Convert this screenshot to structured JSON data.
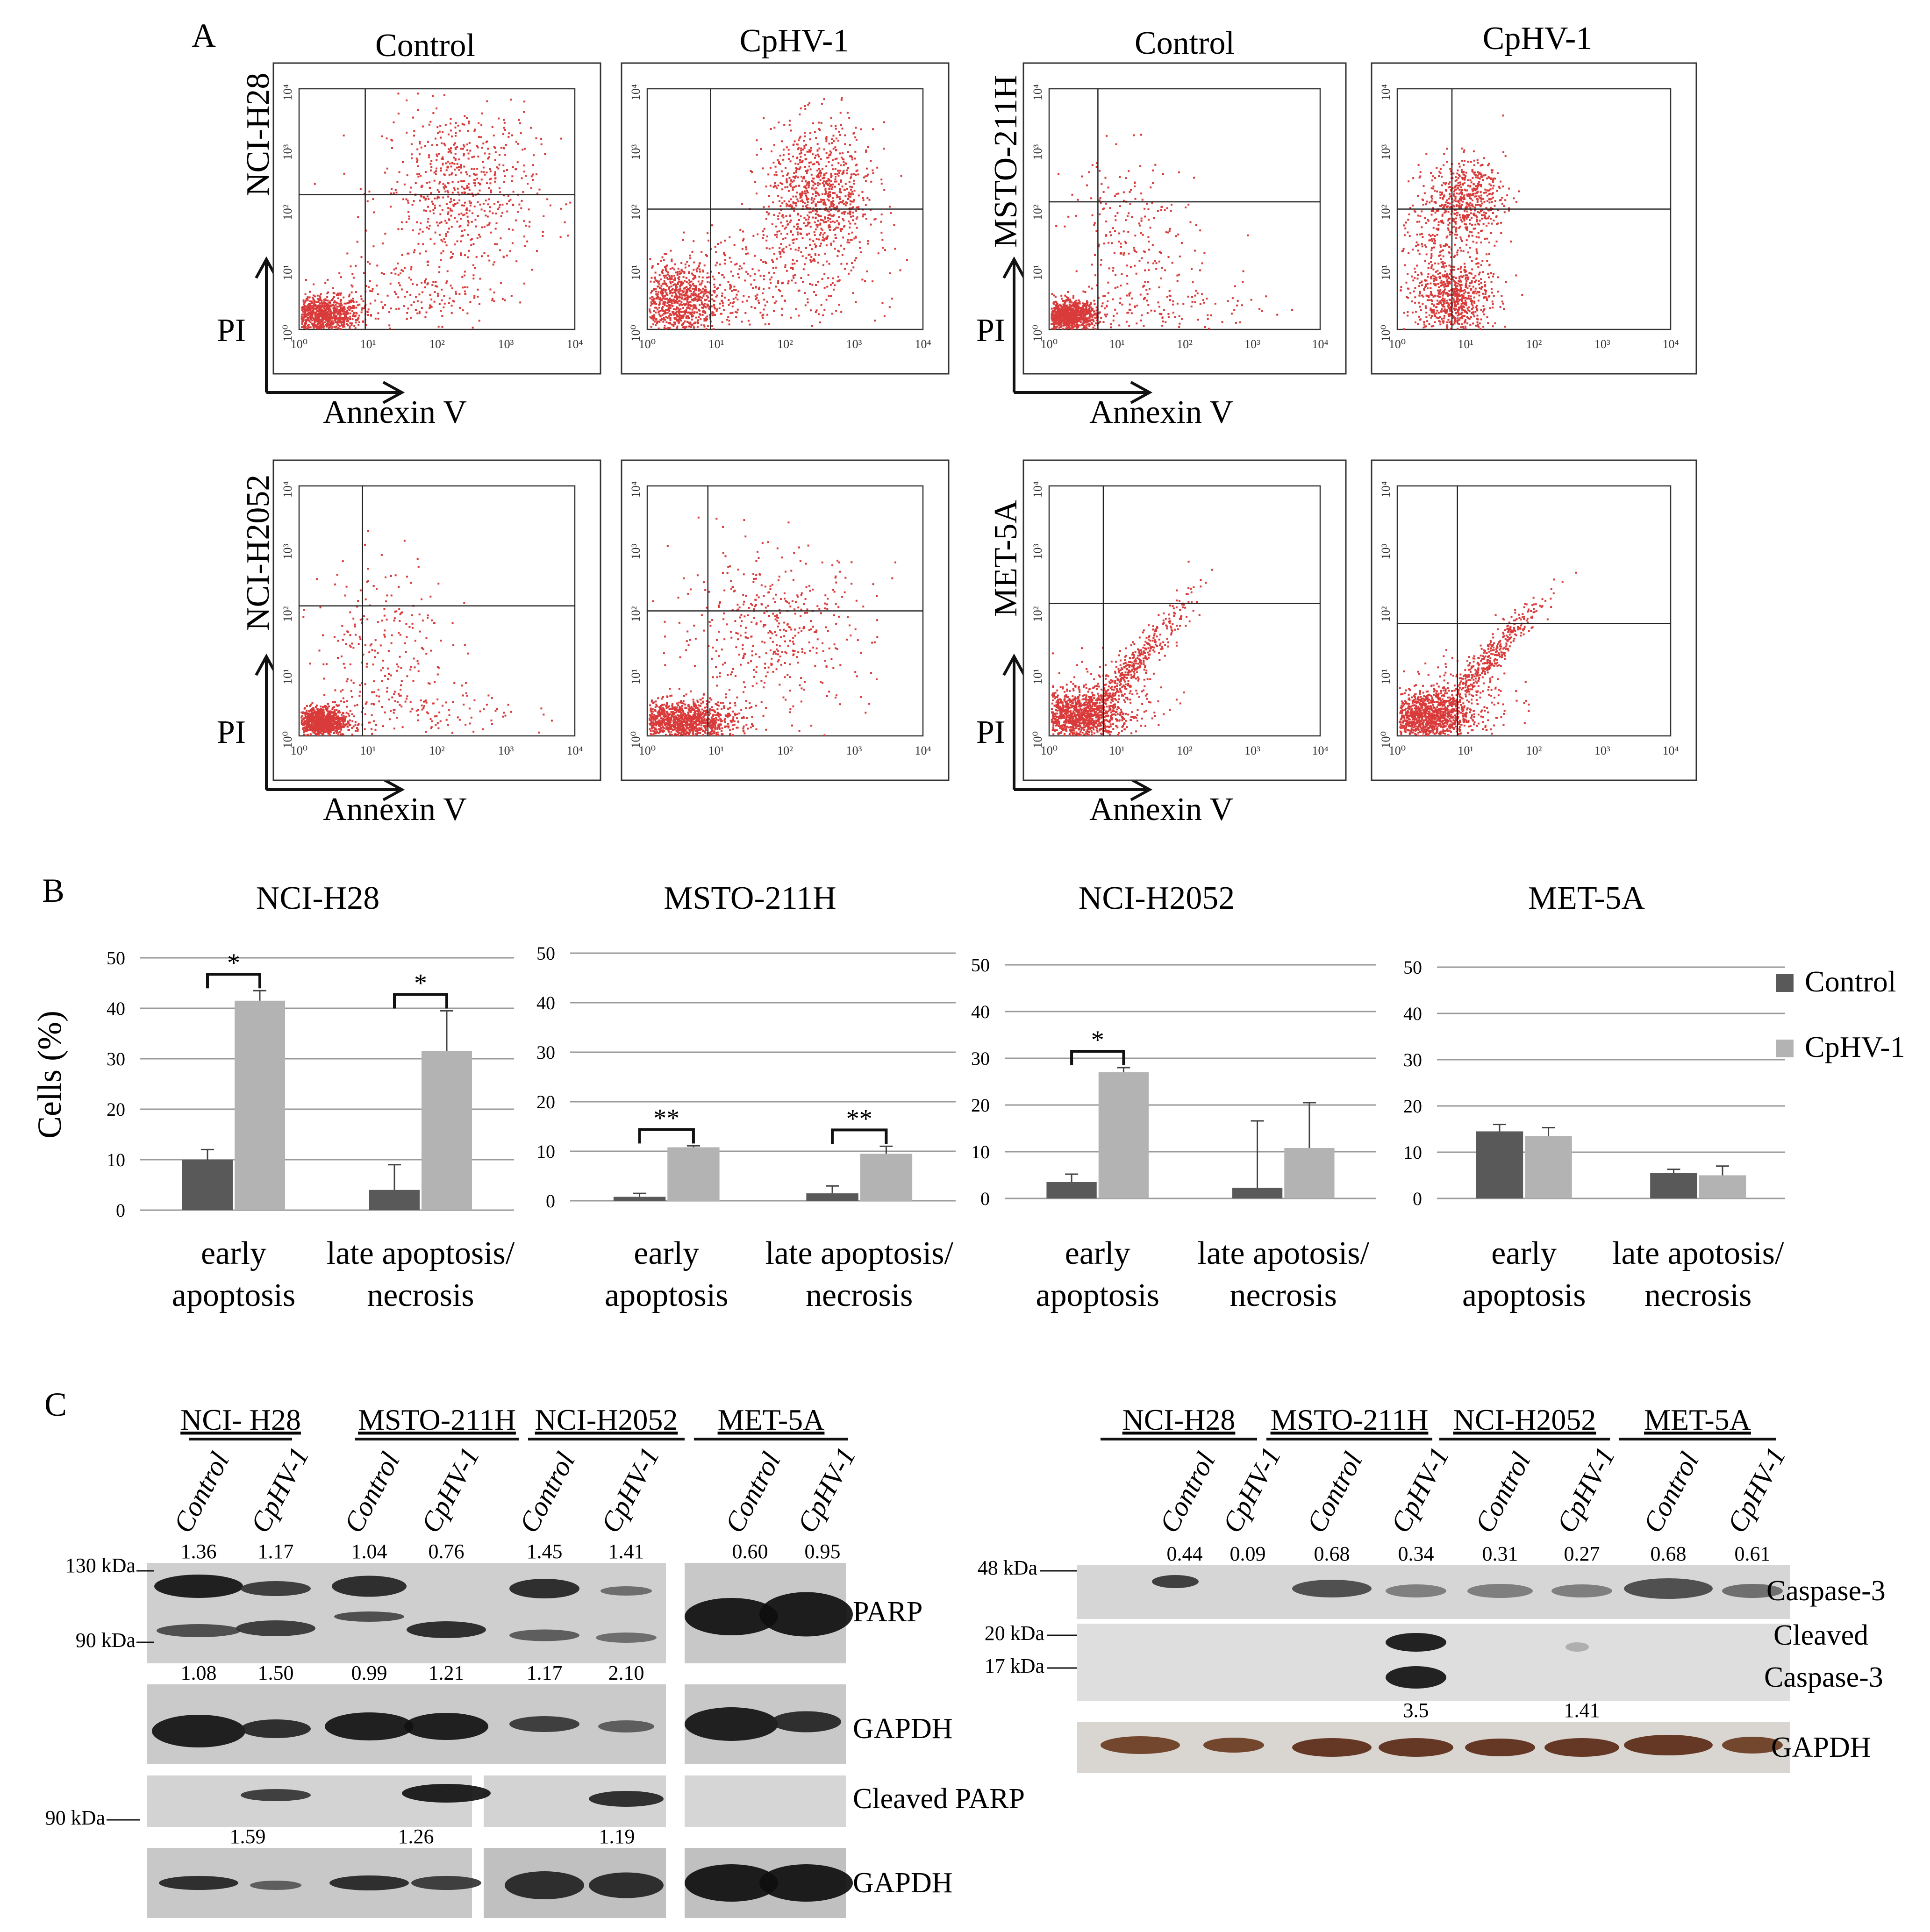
{
  "panels": {
    "a": "A",
    "b": "B",
    "c": "C"
  },
  "flow": {
    "column_headers": [
      {
        "left": "Control",
        "right": "CpHV-1"
      },
      {
        "left": "Control",
        "right": "CpHV-1"
      }
    ],
    "x_axis_label": "Annexin V",
    "y_axis_label": "PI",
    "tick_labels_x": [
      "10⁰",
      "10¹",
      "10²",
      "10³",
      "10⁴"
    ],
    "tick_labels_y": [
      "10⁰",
      "10¹",
      "10²",
      "10³",
      "10⁴"
    ],
    "plots": [
      {
        "cell_line": "NCI-H28",
        "condition": "Control",
        "population": "mixed"
      },
      {
        "cell_line": "NCI-H28",
        "condition": "CpHV-1",
        "population": "late"
      },
      {
        "cell_line": "MSTO-211H",
        "condition": "Control",
        "population": "tight"
      },
      {
        "cell_line": "MSTO-211H",
        "condition": "CpHV-1",
        "population": "upper"
      },
      {
        "cell_line": "NCI-H2052",
        "condition": "Control",
        "population": "tight"
      },
      {
        "cell_line": "NCI-H2052",
        "condition": "CpHV-1",
        "population": "spread"
      },
      {
        "cell_line": "MET-5A",
        "condition": "Control",
        "population": "diagonal"
      },
      {
        "cell_line": "MET-5A",
        "condition": "CpHV-1",
        "population": "diagonal"
      }
    ],
    "dot_color": "#d93a3a"
  },
  "chart_data": [
    {
      "type": "bar",
      "title": "NCI-H28",
      "ylabel": "Cells (%)",
      "ylim": [
        0,
        50
      ],
      "yticks": [
        0,
        10,
        20,
        30,
        40,
        50
      ],
      "categories": [
        "early\napoptosis",
        "late apoptosis/\nnecrosis"
      ],
      "series": [
        {
          "name": "Control",
          "values": [
            10,
            4
          ],
          "errors": [
            2,
            5
          ]
        },
        {
          "name": "CpHV-1",
          "values": [
            41.5,
            31.5
          ],
          "errors": [
            2,
            8
          ]
        }
      ],
      "significance": [
        "*",
        "*"
      ]
    },
    {
      "type": "bar",
      "title": "MSTO-211H",
      "ylabel": "",
      "ylim": [
        0,
        50
      ],
      "yticks": [
        0,
        10,
        20,
        30,
        40,
        50
      ],
      "categories": [
        "early\napoptosis",
        "late apoptosis/\nnecrosis"
      ],
      "series": [
        {
          "name": "Control",
          "values": [
            0.8,
            1.5
          ],
          "errors": [
            0.7,
            1.5
          ]
        },
        {
          "name": "CpHV-1",
          "values": [
            10.8,
            9.5
          ],
          "errors": [
            0.3,
            1.5
          ]
        }
      ],
      "significance": [
        "**",
        "**"
      ]
    },
    {
      "type": "bar",
      "title": "NCI-H2052",
      "ylabel": "",
      "ylim": [
        0,
        50
      ],
      "yticks": [
        0,
        10,
        20,
        30,
        40,
        50
      ],
      "categories": [
        "early\napoptosis",
        "late apotosis/\nnecrosis"
      ],
      "series": [
        {
          "name": "Control",
          "values": [
            3.5,
            2.3
          ],
          "errors": [
            1.7,
            14.3
          ]
        },
        {
          "name": "CpHV-1",
          "values": [
            27,
            10.8
          ],
          "errors": [
            1,
            9.7
          ]
        }
      ],
      "significance": [
        "*",
        ""
      ]
    },
    {
      "type": "bar",
      "title": "MET-5A",
      "ylabel": "",
      "ylim": [
        0,
        50
      ],
      "yticks": [
        0,
        10,
        20,
        30,
        40,
        50
      ],
      "categories": [
        "early\napoptosis",
        "late apotosis/\nnecrosis"
      ],
      "series": [
        {
          "name": "Control",
          "values": [
            14.5,
            5.5
          ],
          "errors": [
            1.5,
            0.8
          ]
        },
        {
          "name": "CpHV-1",
          "values": [
            13.5,
            5
          ],
          "errors": [
            1.8,
            2
          ]
        }
      ],
      "significance": [
        "",
        ""
      ]
    }
  ],
  "legend": {
    "placement": "right",
    "items": [
      {
        "name": "Control",
        "color": "#595959"
      },
      {
        "name": "CpHV-1",
        "color": "#b3b3b3"
      }
    ]
  },
  "colors": {
    "control_bar": "#595959",
    "cphv_bar": "#b3b3b3",
    "gridline": "#9a9a9a"
  },
  "western_left": {
    "cell_lines": [
      "NCI- H28",
      "MSTO-211H",
      "NCI-H2052",
      "MET-5A"
    ],
    "lane_labels": [
      "Control",
      "CpHV-1",
      "Control",
      "CpHV-1",
      "Control",
      "CpHV-1",
      "Control",
      "CpHV-1"
    ],
    "parp_values": [
      "1.36",
      "1.17",
      "1.04",
      "0.76",
      "1.45",
      "1.41",
      "0.60",
      "0.95"
    ],
    "gapdh_values": [
      "1.08",
      "1.50",
      "0.99",
      "1.21",
      "1.17",
      "2.10"
    ],
    "cleaved_values": [
      "1.59",
      "1.26",
      "1.19"
    ],
    "markers": [
      "130 kDa",
      "90 kDa",
      "90 kDa"
    ],
    "labels": [
      "PARP",
      "GAPDH",
      "Cleaved PARP",
      "GAPDH"
    ]
  },
  "western_right": {
    "cell_lines": [
      "NCI-H28",
      "MSTO-211H",
      "NCI-H2052",
      "MET-5A"
    ],
    "lane_labels": [
      "Control",
      "CpHV-1",
      "Control",
      "CpHV-1",
      "Control",
      "CpHV-1",
      "Control",
      "CpHV-1"
    ],
    "caspase_values": [
      "0.44",
      "0.09",
      "0.68",
      "0.34",
      "0.31",
      "0.27",
      "0.68",
      "0.61"
    ],
    "cleaved_values": [
      "3.5",
      "1.41"
    ],
    "markers": [
      "48 kDa",
      "20 kDa",
      "17 kDa"
    ],
    "labels": [
      "Caspase-3",
      "Cleaved",
      "Caspase-3",
      "GAPDH"
    ]
  }
}
